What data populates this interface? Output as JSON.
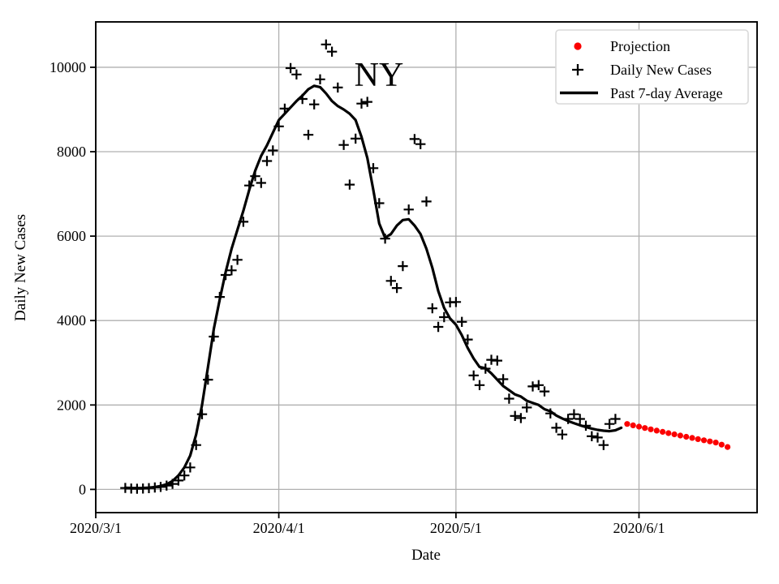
{
  "chart_data": {
    "type": "line+scatter",
    "title": "NY",
    "xlabel": "Date",
    "ylabel": "Daily New Cases",
    "grid": true,
    "legend_position": "upper right",
    "x_ticks": [
      "2020/3/1",
      "2020/4/1",
      "2020/5/1",
      "2020/6/1"
    ],
    "y_ticks": [
      0,
      2000,
      4000,
      6000,
      8000,
      10000
    ],
    "xlim_dates": [
      "2020/3/1",
      "2020/6/21"
    ],
    "ylim": [
      -550,
      11075
    ],
    "series": [
      {
        "name": "Daily New Cases",
        "type": "scatter-plus",
        "color": "#000000",
        "dates": [
          "2020/3/6",
          "2020/3/7",
          "2020/3/8",
          "2020/3/9",
          "2020/3/10",
          "2020/3/11",
          "2020/3/12",
          "2020/3/13",
          "2020/3/14",
          "2020/3/15",
          "2020/3/16",
          "2020/3/17",
          "2020/3/18",
          "2020/3/19",
          "2020/3/20",
          "2020/3/21",
          "2020/3/22",
          "2020/3/23",
          "2020/3/24",
          "2020/3/25",
          "2020/3/26",
          "2020/3/27",
          "2020/3/28",
          "2020/3/29",
          "2020/3/30",
          "2020/3/31",
          "2020/4/1",
          "2020/4/2",
          "2020/4/3",
          "2020/4/4",
          "2020/4/5",
          "2020/4/6",
          "2020/4/7",
          "2020/4/8",
          "2020/4/9",
          "2020/4/10",
          "2020/4/11",
          "2020/4/12",
          "2020/4/13",
          "2020/4/14",
          "2020/4/15",
          "2020/4/16",
          "2020/4/17",
          "2020/4/18",
          "2020/4/19",
          "2020/4/20",
          "2020/4/21",
          "2020/4/22",
          "2020/4/23",
          "2020/4/24",
          "2020/4/25",
          "2020/4/26",
          "2020/4/27",
          "2020/4/28",
          "2020/4/29",
          "2020/4/30",
          "2020/5/1",
          "2020/5/2",
          "2020/5/3",
          "2020/5/4",
          "2020/5/5",
          "2020/5/6",
          "2020/5/7",
          "2020/5/8",
          "2020/5/9",
          "2020/5/10",
          "2020/5/11",
          "2020/5/12",
          "2020/5/13",
          "2020/5/14",
          "2020/5/15",
          "2020/5/16",
          "2020/5/17",
          "2020/5/18",
          "2020/5/19",
          "2020/5/20",
          "2020/5/21",
          "2020/5/22",
          "2020/5/23",
          "2020/5/24",
          "2020/5/25",
          "2020/5/26",
          "2020/5/27",
          "2020/5/28"
        ],
        "values": [
          35,
          20,
          15,
          20,
          30,
          45,
          60,
          90,
          130,
          210,
          330,
          520,
          1050,
          1780,
          2600,
          3620,
          4560,
          5080,
          5190,
          5440,
          6340,
          7200,
          7420,
          7260,
          7780,
          8030,
          8600,
          9020,
          9980,
          9830,
          9250,
          8400,
          9120,
          9715,
          10540,
          10370,
          9520,
          8160,
          7220,
          8310,
          9140,
          9180,
          7610,
          6780,
          5940,
          4940,
          4770,
          5290,
          6630,
          8300,
          8180,
          6820,
          4290,
          3850,
          4080,
          4430,
          4440,
          3970,
          3550,
          2700,
          2470,
          2860,
          3070,
          3050,
          2610,
          2150,
          1740,
          1690,
          1940,
          2440,
          2470,
          2320,
          1800,
          1460,
          1300,
          1670,
          1780,
          1670,
          1510,
          1260,
          1230,
          1050,
          1550,
          1670
        ]
      },
      {
        "name": "Past 7-day Average",
        "type": "line",
        "color": "#000000",
        "dates": [
          "2020/3/6",
          "2020/3/7",
          "2020/3/8",
          "2020/3/9",
          "2020/3/10",
          "2020/3/11",
          "2020/3/12",
          "2020/3/13",
          "2020/3/14",
          "2020/3/15",
          "2020/3/16",
          "2020/3/17",
          "2020/3/18",
          "2020/3/19",
          "2020/3/20",
          "2020/3/21",
          "2020/3/22",
          "2020/3/23",
          "2020/3/24",
          "2020/3/25",
          "2020/3/26",
          "2020/3/27",
          "2020/3/28",
          "2020/3/29",
          "2020/3/30",
          "2020/3/31",
          "2020/4/1",
          "2020/4/2",
          "2020/4/3",
          "2020/4/4",
          "2020/4/5",
          "2020/4/6",
          "2020/4/7",
          "2020/4/8",
          "2020/4/9",
          "2020/4/10",
          "2020/4/11",
          "2020/4/12",
          "2020/4/13",
          "2020/4/14",
          "2020/4/15",
          "2020/4/16",
          "2020/4/17",
          "2020/4/18",
          "2020/4/19",
          "2020/4/20",
          "2020/4/21",
          "2020/4/22",
          "2020/4/23",
          "2020/4/24",
          "2020/4/25",
          "2020/4/26",
          "2020/4/27",
          "2020/4/28",
          "2020/4/29",
          "2020/4/30",
          "2020/5/1",
          "2020/5/2",
          "2020/5/3",
          "2020/5/4",
          "2020/5/5",
          "2020/5/6",
          "2020/5/7",
          "2020/5/8",
          "2020/5/9",
          "2020/5/10",
          "2020/5/11",
          "2020/5/12",
          "2020/5/13",
          "2020/5/14",
          "2020/5/15",
          "2020/5/16",
          "2020/5/17",
          "2020/5/18",
          "2020/5/19",
          "2020/5/20",
          "2020/5/21",
          "2020/5/22",
          "2020/5/23",
          "2020/5/24",
          "2020/5/25",
          "2020/5/26",
          "2020/5/27",
          "2020/5/28",
          "2020/5/29"
        ],
        "values": [
          40,
          35,
          32,
          35,
          42,
          55,
          80,
          120,
          200,
          330,
          520,
          800,
          1300,
          2000,
          2900,
          3800,
          4500,
          5150,
          5700,
          6150,
          6600,
          7100,
          7550,
          7900,
          8150,
          8450,
          8750,
          8900,
          9050,
          9200,
          9330,
          9480,
          9560,
          9530,
          9380,
          9200,
          9080,
          9000,
          8900,
          8750,
          8350,
          7850,
          7100,
          6300,
          5960,
          6050,
          6250,
          6380,
          6400,
          6250,
          6050,
          5700,
          5250,
          4700,
          4300,
          4050,
          3900,
          3650,
          3350,
          3100,
          2900,
          2870,
          2750,
          2600,
          2450,
          2350,
          2250,
          2200,
          2100,
          2050,
          2000,
          1900,
          1850,
          1750,
          1680,
          1620,
          1570,
          1520,
          1480,
          1440,
          1410,
          1390,
          1380,
          1400,
          1460
        ]
      },
      {
        "name": "Projection",
        "type": "scatter-dot",
        "color": "#fb0000",
        "dates": [
          "2020/5/30",
          "2020/5/31",
          "2020/6/1",
          "2020/6/2",
          "2020/6/3",
          "2020/6/4",
          "2020/6/5",
          "2020/6/6",
          "2020/6/7",
          "2020/6/8",
          "2020/6/9",
          "2020/6/10",
          "2020/6/11",
          "2020/6/12",
          "2020/6/13",
          "2020/6/14",
          "2020/6/15",
          "2020/6/16"
        ],
        "values": [
          1550,
          1518,
          1486,
          1455,
          1424,
          1393,
          1363,
          1333,
          1304,
          1275,
          1247,
          1219,
          1191,
          1164,
          1137,
          1110,
          1060,
          1005
        ]
      }
    ]
  },
  "legend": {
    "items": [
      {
        "label": "Projection",
        "marker": "dot",
        "color": "#fb0000"
      },
      {
        "label": "Daily New Cases",
        "marker": "plus",
        "color": "#000000"
      },
      {
        "label": "Past 7-day Average",
        "marker": "line",
        "color": "#000000"
      }
    ]
  }
}
